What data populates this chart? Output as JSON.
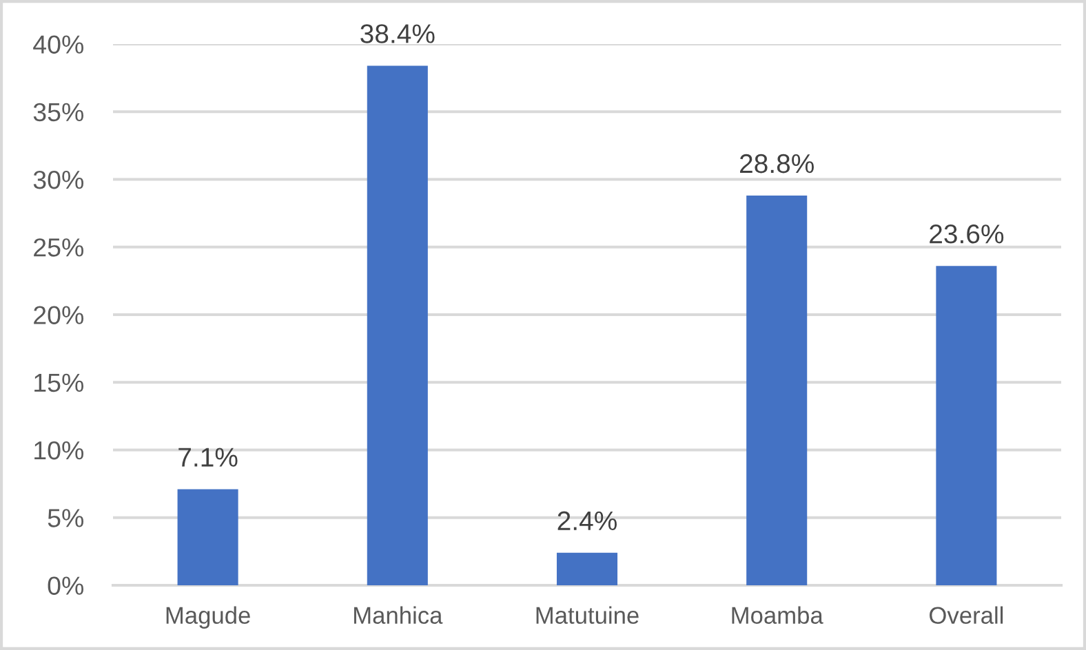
{
  "chart_data": {
    "type": "bar",
    "categories": [
      "Magude",
      "Manhica",
      "Matutuine",
      "Moamba",
      "Overall"
    ],
    "values": [
      7.1,
      38.4,
      2.4,
      28.8,
      23.6
    ],
    "color": "#4472c4",
    "value_labels": [
      "7.1%",
      "38.4%",
      "2.4%",
      "28.8%",
      "23.6%"
    ],
    "ylim": [
      0,
      40
    ],
    "yticks": [
      {
        "value": 0,
        "label": "0%"
      },
      {
        "value": 5,
        "label": "5%"
      },
      {
        "value": 10,
        "label": "10%"
      },
      {
        "value": 15,
        "label": "15%"
      },
      {
        "value": 20,
        "label": "20%"
      },
      {
        "value": 25,
        "label": "25%"
      },
      {
        "value": 30,
        "label": "30%"
      },
      {
        "value": 35,
        "label": "35%"
      },
      {
        "value": 40,
        "label": "40%"
      }
    ],
    "grid": "y"
  }
}
